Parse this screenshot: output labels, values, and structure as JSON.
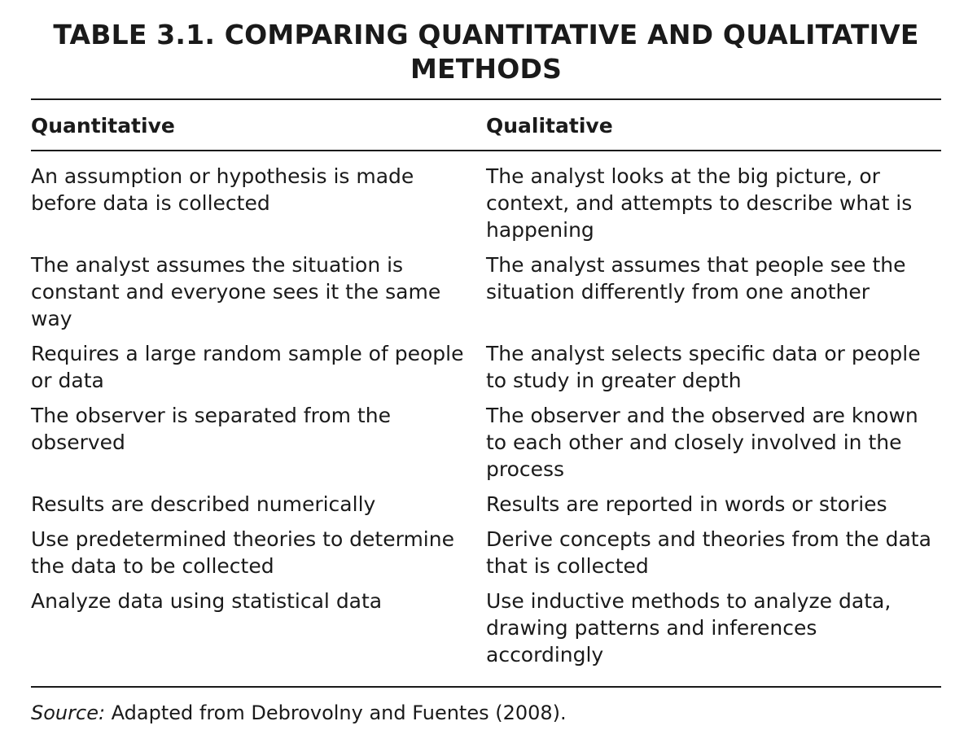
{
  "title": "TABLE 3.1.  COMPARING QUANTITATIVE AND QUALITATIVE METHODS",
  "headers": {
    "quantitative": "Quantitative",
    "qualitative": "Qualitative"
  },
  "rows": [
    {
      "quantitative": "An assumption or hypothesis is made before data is collected",
      "qualitative": "The analyst looks at the big picture, or context, and attempts to describe what is happening"
    },
    {
      "quantitative": "The analyst assumes the situation is constant and everyone sees it the same way",
      "qualitative": "The analyst assumes that people see the situation differently from one another"
    },
    {
      "quantitative": "Requires a large random sample of people or data",
      "qualitative": "The analyst selects specific data or people to study in greater depth"
    },
    {
      "quantitative": "The observer is separated from the observed",
      "qualitative": "The observer and the observed are known to each other and closely involved in the process"
    },
    {
      "quantitative": "Results are described numerically",
      "qualitative": "Results are reported in words or stories"
    },
    {
      "quantitative": "Use predetermined theories to determine the data to be collected",
      "qualitative": "Derive concepts and theories from the data that is collected"
    },
    {
      "quantitative": "Analyze data using statistical data",
      "qualitative": "Use inductive methods to analyze data, drawing patterns and inferences accordingly"
    }
  ],
  "source": {
    "label": "Source:",
    "text": " Adapted from Debrovolny and Fuentes (2008)."
  }
}
